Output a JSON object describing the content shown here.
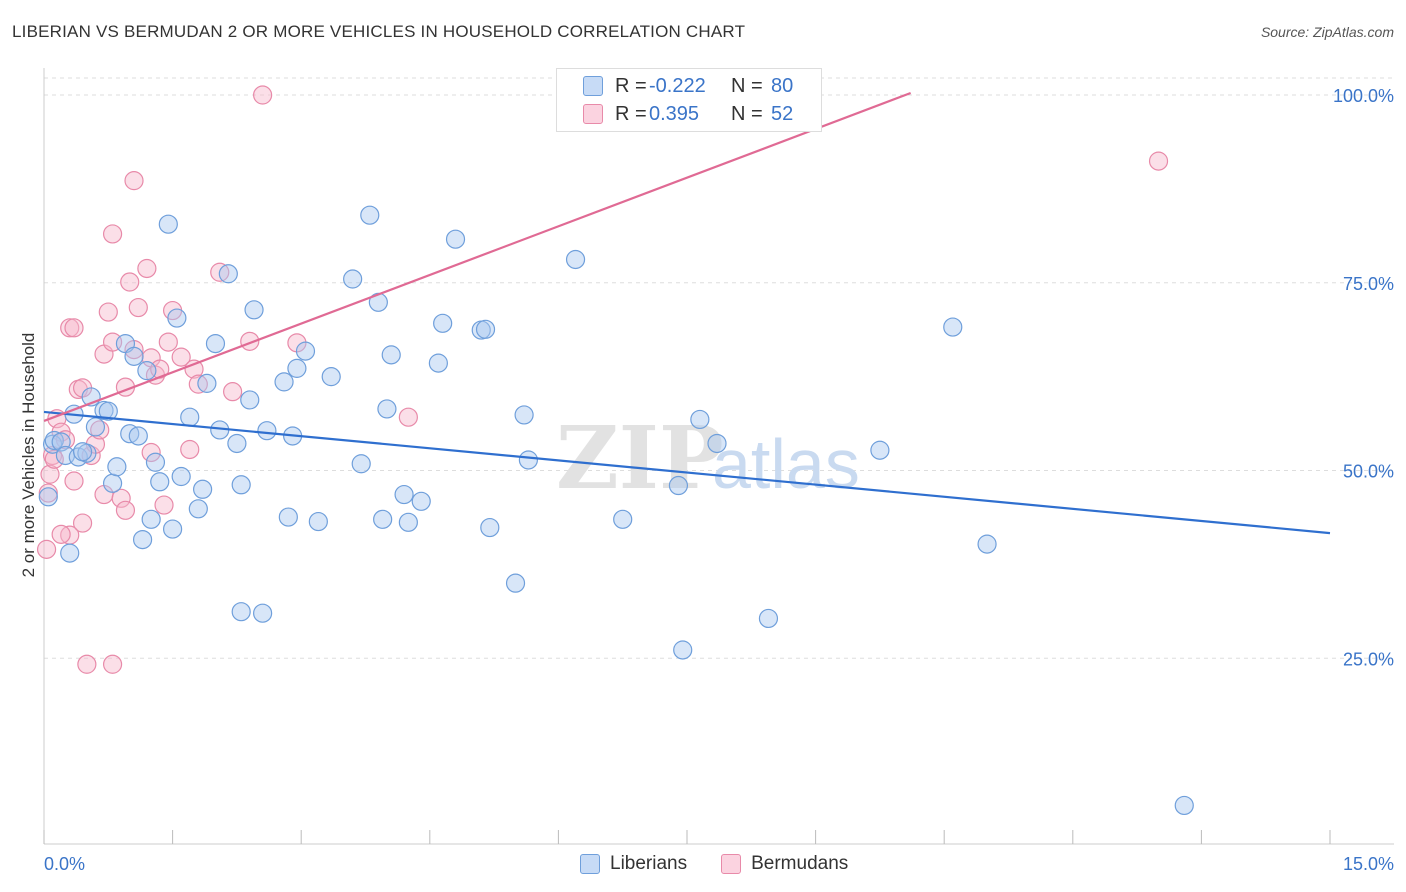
{
  "title": "LIBERIAN VS BERMUDAN 2 OR MORE VEHICLES IN HOUSEHOLD CORRELATION CHART",
  "source": "Source: ZipAtlas.com",
  "watermark": {
    "zip": "ZIP",
    "atlas": "atlas"
  },
  "legend_top": {
    "rows": [
      {
        "r_label": "R =",
        "r_value": "-0.222",
        "n_label": "N =",
        "n_value": "80",
        "color": "#a8c8f0"
      },
      {
        "r_label": "R =",
        "r_value": "0.395",
        "n_label": "N =",
        "n_value": "52",
        "color": "#f6b8cc"
      }
    ]
  },
  "legend_bottom": [
    {
      "label": "Liberians",
      "color": "#a8c8f0"
    },
    {
      "label": "Bermudans",
      "color": "#f6b8cc"
    }
  ],
  "colors": {
    "blue_fill": "#a8c8f0",
    "blue_stroke": "#6f9fdb",
    "blue_line": "#2f6fcf",
    "pink_fill": "#f6b8cc",
    "pink_stroke": "#e88aa9",
    "pink_line": "#e06a94",
    "tick_label": "#3a74c8",
    "grid": "#dddddd"
  },
  "chart_data": {
    "type": "scatter",
    "title": "LIBERIAN VS BERMUDAN 2 OR MORE VEHICLES IN HOUSEHOLD CORRELATION CHART",
    "xlabel": "",
    "ylabel": "2 or more Vehicles in Household",
    "xlim": [
      0,
      15
    ],
    "ylim": [
      0,
      102
    ],
    "x_tick_labels": [
      {
        "value": 0,
        "label": "0.0%"
      },
      {
        "value": 15,
        "label": "15.0%"
      }
    ],
    "y_tick_labels": [
      {
        "value": 25,
        "label": "25.0%"
      },
      {
        "value": 50,
        "label": "50.0%"
      },
      {
        "value": 75,
        "label": "75.0%"
      },
      {
        "value": 100,
        "label": "100.0%"
      }
    ],
    "grid": true,
    "legend_position": "top-center",
    "series": [
      {
        "name": "Liberians",
        "trend": {
          "x": [
            0,
            15
          ],
          "y": [
            57.8,
            41.4
          ]
        },
        "points": [
          [
            0.05,
            46.5
          ],
          [
            0.1,
            53.5
          ],
          [
            0.12,
            54.0
          ],
          [
            0.2,
            53.8
          ],
          [
            0.25,
            52.0
          ],
          [
            0.3,
            39.0
          ],
          [
            0.35,
            57.5
          ],
          [
            0.4,
            51.8
          ],
          [
            0.5,
            52.3
          ],
          [
            0.55,
            59.8
          ],
          [
            0.6,
            55.8
          ],
          [
            0.7,
            58.0
          ],
          [
            0.75,
            57.9
          ],
          [
            0.8,
            48.3
          ],
          [
            0.85,
            50.5
          ],
          [
            0.95,
            66.9
          ],
          [
            1.0,
            54.9
          ],
          [
            1.05,
            65.2
          ],
          [
            1.1,
            54.6
          ],
          [
            1.15,
            40.8
          ],
          [
            1.2,
            63.3
          ],
          [
            1.25,
            43.5
          ],
          [
            1.3,
            51.1
          ],
          [
            1.35,
            48.5
          ],
          [
            1.45,
            82.8
          ],
          [
            1.5,
            42.2
          ],
          [
            1.55,
            70.3
          ],
          [
            1.6,
            49.2
          ],
          [
            1.7,
            57.1
          ],
          [
            1.8,
            44.9
          ],
          [
            1.85,
            47.5
          ],
          [
            1.9,
            61.6
          ],
          [
            2.0,
            66.9
          ],
          [
            2.05,
            55.4
          ],
          [
            2.15,
            76.2
          ],
          [
            2.25,
            53.6
          ],
          [
            2.3,
            31.2
          ],
          [
            2.3,
            48.1
          ],
          [
            2.4,
            59.4
          ],
          [
            2.45,
            71.4
          ],
          [
            2.55,
            31.0
          ],
          [
            2.6,
            55.3
          ],
          [
            2.8,
            61.8
          ],
          [
            2.85,
            43.8
          ],
          [
            2.9,
            54.6
          ],
          [
            2.95,
            63.6
          ],
          [
            3.05,
            65.9
          ],
          [
            3.2,
            43.2
          ],
          [
            3.35,
            62.5
          ],
          [
            3.6,
            75.5
          ],
          [
            3.7,
            50.9
          ],
          [
            3.8,
            84.0
          ],
          [
            3.9,
            72.4
          ],
          [
            3.95,
            43.5
          ],
          [
            4.0,
            58.2
          ],
          [
            4.05,
            65.4
          ],
          [
            4.2,
            46.8
          ],
          [
            4.25,
            43.1
          ],
          [
            4.4,
            45.9
          ],
          [
            4.6,
            64.3
          ],
          [
            4.65,
            69.6
          ],
          [
            4.8,
            80.8
          ],
          [
            5.1,
            68.7
          ],
          [
            5.15,
            68.8
          ],
          [
            5.2,
            42.4
          ],
          [
            5.5,
            35.0
          ],
          [
            5.6,
            57.4
          ],
          [
            5.65,
            51.4
          ],
          [
            6.2,
            78.1
          ],
          [
            6.75,
            43.5
          ],
          [
            7.4,
            48.0
          ],
          [
            7.45,
            26.1
          ],
          [
            7.65,
            56.8
          ],
          [
            7.85,
            53.6
          ],
          [
            8.45,
            30.3
          ],
          [
            9.75,
            52.7
          ],
          [
            10.6,
            69.1
          ],
          [
            11.0,
            40.2
          ],
          [
            13.3,
            5.4
          ],
          [
            0.45,
            52.5
          ]
        ]
      },
      {
        "name": "Bermudans",
        "trend": {
          "x": [
            0,
            15
          ],
          "y": [
            56.6,
            121.0
          ]
        },
        "points": [
          [
            0.03,
            39.5
          ],
          [
            0.05,
            47.0
          ],
          [
            0.07,
            49.5
          ],
          [
            0.1,
            52.0
          ],
          [
            0.12,
            51.5
          ],
          [
            0.15,
            56.9
          ],
          [
            0.2,
            55.1
          ],
          [
            0.25,
            54.1
          ],
          [
            0.3,
            69.0
          ],
          [
            0.3,
            41.4
          ],
          [
            0.35,
            48.6
          ],
          [
            0.4,
            60.8
          ],
          [
            0.45,
            43.0
          ],
          [
            0.45,
            61.0
          ],
          [
            0.5,
            24.2
          ],
          [
            0.55,
            52.0
          ],
          [
            0.6,
            53.5
          ],
          [
            0.65,
            55.4
          ],
          [
            0.7,
            46.8
          ],
          [
            0.7,
            65.5
          ],
          [
            0.75,
            71.1
          ],
          [
            0.8,
            67.1
          ],
          [
            0.8,
            81.5
          ],
          [
            0.8,
            24.2
          ],
          [
            0.9,
            46.3
          ],
          [
            0.95,
            44.7
          ],
          [
            0.95,
            61.1
          ],
          [
            1.0,
            75.1
          ],
          [
            1.05,
            88.6
          ],
          [
            1.05,
            66.1
          ],
          [
            1.1,
            71.7
          ],
          [
            1.2,
            76.9
          ],
          [
            1.25,
            65.0
          ],
          [
            1.25,
            52.4
          ],
          [
            1.3,
            62.7
          ],
          [
            1.35,
            63.5
          ],
          [
            1.4,
            45.4
          ],
          [
            1.45,
            67.1
          ],
          [
            1.5,
            71.3
          ],
          [
            1.6,
            65.1
          ],
          [
            1.7,
            52.8
          ],
          [
            1.75,
            63.5
          ],
          [
            1.8,
            61.5
          ],
          [
            2.05,
            76.4
          ],
          [
            2.2,
            60.5
          ],
          [
            2.4,
            67.2
          ],
          [
            2.95,
            67.0
          ],
          [
            2.55,
            100.0
          ],
          [
            4.25,
            57.1
          ],
          [
            13.0,
            91.2
          ],
          [
            0.35,
            69.0
          ],
          [
            0.2,
            41.5
          ]
        ]
      }
    ]
  }
}
